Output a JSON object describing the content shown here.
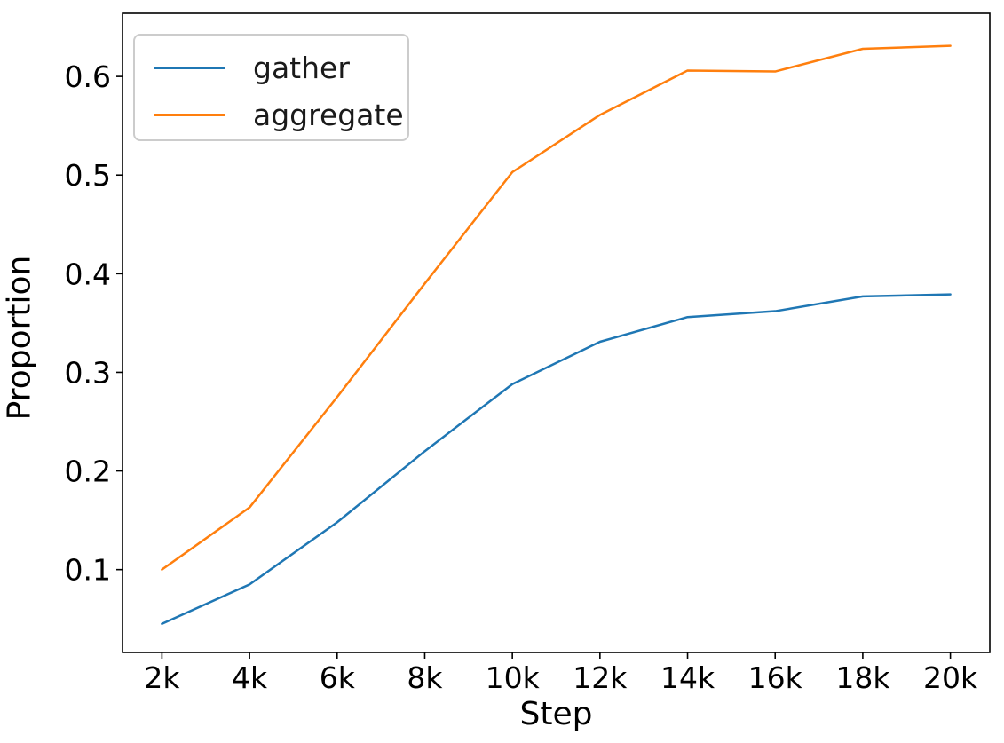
{
  "figure": {
    "background_color": "#ffffff",
    "spine_color": "#000000",
    "text_color": "#000000",
    "legend_border_color": "#cccccc"
  },
  "chart_data": {
    "type": "line",
    "title": "",
    "xlabel": "Step",
    "ylabel": "Proportion",
    "x": [
      2000,
      4000,
      6000,
      8000,
      10000,
      12000,
      14000,
      16000,
      18000,
      20000
    ],
    "x_tick_labels": [
      "2k",
      "4k",
      "6k",
      "8k",
      "10k",
      "12k",
      "14k",
      "16k",
      "18k",
      "20k"
    ],
    "y_ticks": [
      0.1,
      0.2,
      0.3,
      0.4,
      0.5,
      0.6
    ],
    "y_tick_labels": [
      "0.1",
      "0.2",
      "0.3",
      "0.4",
      "0.5",
      "0.6"
    ],
    "xlim": [
      1100,
      20900
    ],
    "ylim": [
      0.016,
      0.664
    ],
    "grid": false,
    "legend_position": "upper left",
    "series": [
      {
        "name": "gather",
        "color": "#1f77b4",
        "values": [
          0.045,
          0.085,
          0.148,
          0.22,
          0.288,
          0.331,
          0.356,
          0.362,
          0.377,
          0.379
        ]
      },
      {
        "name": "aggregate",
        "color": "#ff7f0e",
        "values": [
          0.1,
          0.163,
          0.275,
          0.39,
          0.503,
          0.561,
          0.606,
          0.605,
          0.628,
          0.631
        ]
      }
    ]
  }
}
